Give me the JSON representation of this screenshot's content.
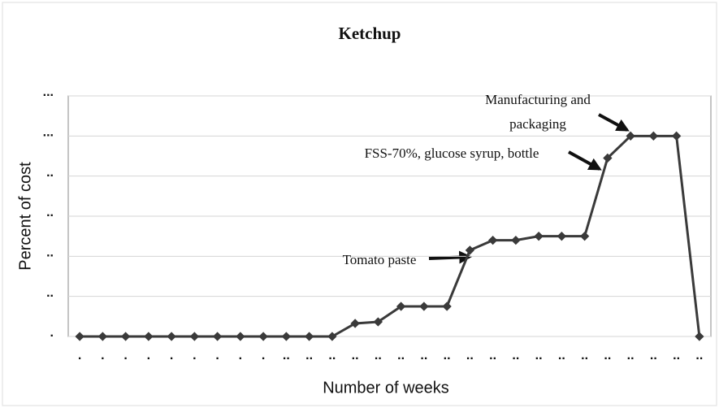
{
  "chart_data": {
    "type": "line",
    "title": "Ketchup",
    "x_label": "Number of weeks",
    "y_label": "Percent of cost",
    "categories": [
      ".",
      ".",
      ".",
      ".",
      ".",
      ".",
      ".",
      ".",
      ".",
      "..",
      "..",
      "..",
      "..",
      "..",
      "..",
      "..",
      "..",
      "..",
      "..",
      "..",
      "..",
      "..",
      "..",
      "..",
      "..",
      "..",
      "..",
      ".."
    ],
    "series": [
      {
        "name": "Ketchup",
        "color": "#3a3a3a",
        "values": [
          0,
          0,
          0,
          0,
          0,
          0,
          0,
          0,
          0,
          0,
          0,
          0,
          6.5,
          7.3,
          15,
          15,
          15,
          43,
          48,
          48,
          50,
          50,
          50,
          89,
          100,
          100,
          100,
          0
        ]
      }
    ],
    "ylim": [
      0,
      120
    ],
    "yticks": [
      {
        "value": 0,
        "label": "."
      },
      {
        "value": 20,
        "label": ".."
      },
      {
        "value": 40,
        "label": ".."
      },
      {
        "value": 60,
        "label": ".."
      },
      {
        "value": 80,
        "label": ".."
      },
      {
        "value": 100,
        "label": "..."
      },
      {
        "value": 120,
        "label": "..."
      }
    ],
    "grid": true,
    "annotations": [
      {
        "lines": [
          "Manufacturing and",
          "packaging"
        ]
      },
      {
        "lines": [
          "FSS-70%, glucose syrup, bottle"
        ]
      },
      {
        "lines": [
          "Tomato paste"
        ]
      }
    ]
  }
}
